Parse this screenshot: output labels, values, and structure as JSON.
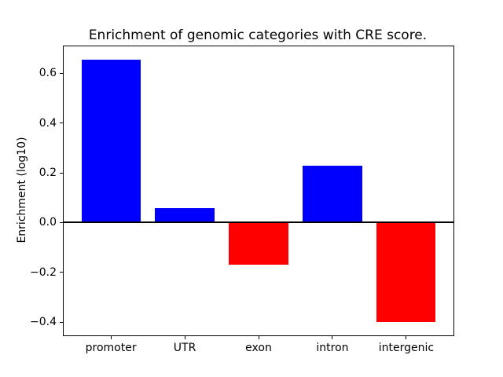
{
  "figure": {
    "background": "#ffffff",
    "text_color": "#000000"
  },
  "chart_data": {
    "type": "bar",
    "title": "Enrichment of genomic categories with CRE score.",
    "xlabel": "",
    "ylabel": "Enrichment (log10)",
    "categories": [
      "promoter",
      "UTR",
      "exon",
      "intron",
      "intergenic"
    ],
    "values": [
      0.655,
      0.057,
      -0.17,
      0.23,
      -0.4
    ],
    "bar_colors": [
      "#0000ff",
      "#0000ff",
      "#ff0000",
      "#0000ff",
      "#ff0000"
    ],
    "positive_color": "#0000ff",
    "negative_color": "#ff0000",
    "ylim": [
      -0.453,
      0.708
    ],
    "yticks": [
      0.6,
      0.4,
      0.2,
      0.0,
      -0.2,
      -0.4
    ],
    "ytick_labels": [
      "0.6",
      "0.4",
      "0.2",
      "0.0",
      "−0.2",
      "−0.4"
    ],
    "grid": false,
    "legend": false,
    "zero_line": true,
    "bar_width_fraction": 0.8
  }
}
